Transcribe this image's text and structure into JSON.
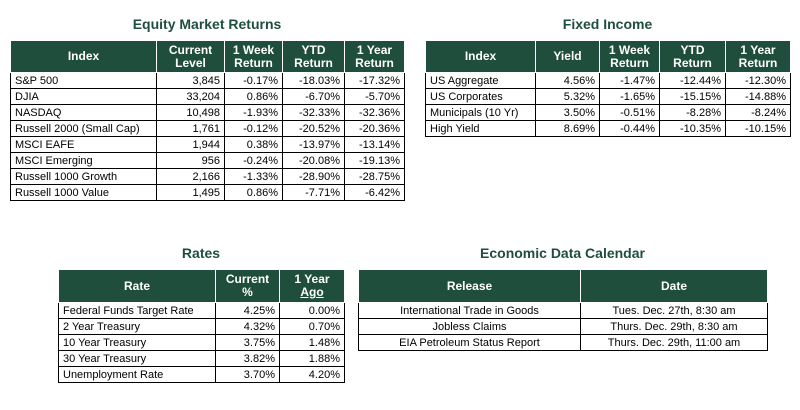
{
  "equity": {
    "title": "Equity Market Returns",
    "headers": {
      "index": "Index",
      "current_l1": "Current",
      "current_l2": "Level",
      "week_l1": "1 Week",
      "week_l2": "Return",
      "ytd_l1": "YTD",
      "ytd_l2": "Return",
      "year_l1": "1 Year",
      "year_l2": "Return"
    },
    "rows": [
      {
        "name": "S&P 500",
        "level": "3,845",
        "week": "-0.17%",
        "ytd": "-18.03%",
        "year": "-17.32%"
      },
      {
        "name": "DJIA",
        "level": "33,204",
        "week": "0.86%",
        "ytd": "-6.70%",
        "year": "-5.70%"
      },
      {
        "name": "NASDAQ",
        "level": "10,498",
        "week": "-1.93%",
        "ytd": "-32.33%",
        "year": "-32.36%"
      },
      {
        "name": "Russell 2000 (Small Cap)",
        "level": "1,761",
        "week": "-0.12%",
        "ytd": "-20.52%",
        "year": "-20.36%"
      },
      {
        "name": "MSCI EAFE",
        "level": "1,944",
        "week": "0.38%",
        "ytd": "-13.97%",
        "year": "-13.14%"
      },
      {
        "name": "MSCI Emerging",
        "level": "956",
        "week": "-0.24%",
        "ytd": "-20.08%",
        "year": "-19.13%"
      },
      {
        "name": "Russell 1000 Growth",
        "level": "2,166",
        "week": "-1.33%",
        "ytd": "-28.90%",
        "year": "-28.75%"
      },
      {
        "name": "Russell 1000 Value",
        "level": "1,495",
        "week": "0.86%",
        "ytd": "-7.71%",
        "year": "-6.42%"
      }
    ]
  },
  "fixed_income": {
    "title": "Fixed Income",
    "headers": {
      "index": "Index",
      "yield": "Yield",
      "week_l1": "1 Week",
      "week_l2": "Return",
      "ytd_l1": "YTD",
      "ytd_l2": "Return",
      "year_l1": "1 Year",
      "year_l2": "Return"
    },
    "rows": [
      {
        "name": "US Aggregate",
        "yield": "4.56%",
        "week": "-1.47%",
        "ytd": "-12.44%",
        "year": "-12.30%"
      },
      {
        "name": "US Corporates",
        "yield": "5.32%",
        "week": "-1.65%",
        "ytd": "-15.15%",
        "year": "-14.88%"
      },
      {
        "name": "Municipals (10 Yr)",
        "yield": "3.50%",
        "week": "-0.51%",
        "ytd": "-8.28%",
        "year": "-8.24%"
      },
      {
        "name": "High Yield",
        "yield": "8.69%",
        "week": "-0.44%",
        "ytd": "-10.35%",
        "year": "-10.15%"
      }
    ]
  },
  "rates": {
    "title": "Rates",
    "headers": {
      "rate": "Rate",
      "current_l1": "Current",
      "current_l2": "%",
      "ago_l1": "1 Year",
      "ago_l2": "Ago"
    },
    "rows": [
      {
        "name": "Federal Funds Target Rate",
        "current": "4.25%",
        "ago": "0.00%"
      },
      {
        "name": "2 Year Treasury",
        "current": "4.32%",
        "ago": "0.70%"
      },
      {
        "name": "10 Year Treasury",
        "current": "3.75%",
        "ago": "1.48%"
      },
      {
        "name": "30 Year Treasury",
        "current": "3.82%",
        "ago": "1.88%"
      },
      {
        "name": "Unemployment Rate",
        "current": "3.70%",
        "ago": "4.20%"
      }
    ]
  },
  "calendar": {
    "title": "Economic Data Calendar",
    "headers": {
      "release": "Release",
      "date": "Date"
    },
    "rows": [
      {
        "release": "International Trade in Goods",
        "date": "Tues. Dec. 27th, 8:30 am"
      },
      {
        "release": "Jobless Claims",
        "date": "Thurs. Dec. 29th, 8:30 am"
      },
      {
        "release": "EIA Petroleum Status Report",
        "date": "Thurs. Dec. 29th, 11:00 am"
      }
    ]
  },
  "colors": {
    "header_bg": "#1f4e3d",
    "title_text": "#1f4e3d",
    "header_text": "#ffffff"
  }
}
